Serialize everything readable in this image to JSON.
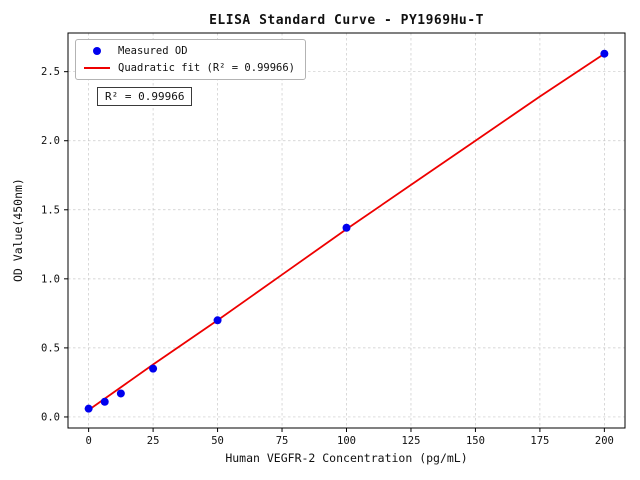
{
  "chart_data": {
    "type": "scatter",
    "title": "ELISA Standard Curve - PY1969Hu-T",
    "xlabel": "Human VEGFR-2 Concentration (pg/mL)",
    "ylabel": "OD Value(450nm)",
    "xlim": [
      -8,
      208
    ],
    "ylim": [
      -0.08,
      2.78
    ],
    "xticks": [
      0,
      25,
      50,
      75,
      100,
      125,
      150,
      175,
      200
    ],
    "yticks": [
      0.0,
      0.5,
      1.0,
      1.5,
      2.0,
      2.5
    ],
    "grid": true,
    "legend_position": "upper left",
    "annotation": "R² = 0.99966",
    "series": [
      {
        "name": "Measured OD",
        "kind": "scatter",
        "color": "#0000ee",
        "x": [
          0,
          6.25,
          12.5,
          25,
          50,
          100,
          200
        ],
        "y": [
          0.06,
          0.11,
          0.17,
          0.35,
          0.7,
          1.37,
          2.63
        ]
      },
      {
        "name": "Quadratic fit (R² = 0.99966)",
        "kind": "line",
        "color": "#ee0000",
        "x": [
          0,
          25,
          50,
          75,
          100,
          125,
          150,
          175,
          200
        ],
        "y": [
          0.05,
          0.38,
          0.7,
          1.03,
          1.36,
          1.68,
          2.0,
          2.32,
          2.63
        ]
      }
    ]
  }
}
